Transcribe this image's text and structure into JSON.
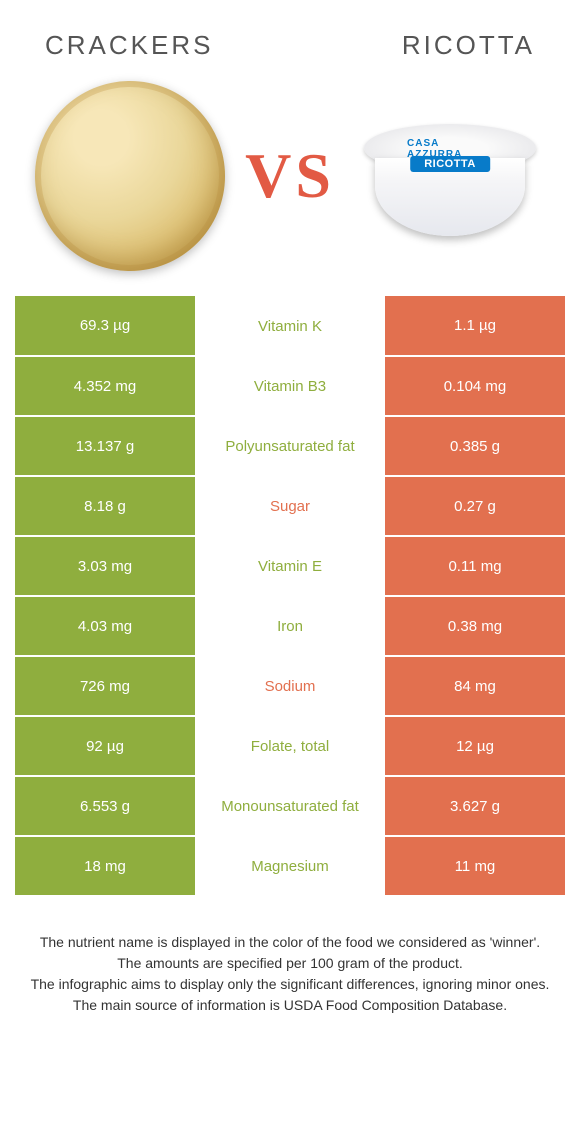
{
  "header": {
    "left_title": "CRACKERS",
    "right_title": "RICOTTA",
    "vs_label": "VS",
    "ricotta_label": "RICOTTA",
    "ricotta_brand": "CASA AZZURRA"
  },
  "colors": {
    "left": "#8fae3e",
    "right": "#e2704f",
    "left_text": "#8fae3e",
    "right_text": "#e2704f",
    "white": "#ffffff"
  },
  "rows": [
    {
      "left": "69.3 µg",
      "mid": "Vitamin K",
      "right": "1.1 µg",
      "winner": "left"
    },
    {
      "left": "4.352 mg",
      "mid": "Vitamin B3",
      "right": "0.104 mg",
      "winner": "left"
    },
    {
      "left": "13.137 g",
      "mid": "Polyunsaturated fat",
      "right": "0.385 g",
      "winner": "left"
    },
    {
      "left": "8.18 g",
      "mid": "Sugar",
      "right": "0.27 g",
      "winner": "right"
    },
    {
      "left": "3.03 mg",
      "mid": "Vitamin E",
      "right": "0.11 mg",
      "winner": "left"
    },
    {
      "left": "4.03 mg",
      "mid": "Iron",
      "right": "0.38 mg",
      "winner": "left"
    },
    {
      "left": "726 mg",
      "mid": "Sodium",
      "right": "84 mg",
      "winner": "right"
    },
    {
      "left": "92 µg",
      "mid": "Folate, total",
      "right": "12 µg",
      "winner": "left"
    },
    {
      "left": "6.553 g",
      "mid": "Monounsaturated fat",
      "right": "3.627 g",
      "winner": "left"
    },
    {
      "left": "18 mg",
      "mid": "Magnesium",
      "right": "11 mg",
      "winner": "left"
    }
  ],
  "footer": {
    "line1": "The nutrient name is displayed in the color of the food we considered as 'winner'.",
    "line2": "The amounts are specified per 100 gram of the product.",
    "line3": "The infographic aims to display only the significant differences, ignoring minor ones.",
    "line4": "The main source of information is USDA Food Composition Database."
  }
}
